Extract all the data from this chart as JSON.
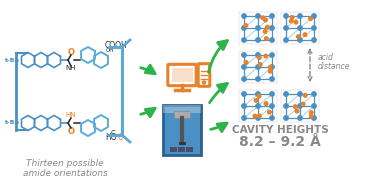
{
  "bg_color": "#ffffff",
  "title_text": "CAVITY HEIGHTS",
  "subtitle_text": "8.2 – 9.2 Å",
  "bottom_label_line1": "Thirteen possible",
  "bottom_label_line2": "amide orientations",
  "acid_label_line1": "acid",
  "acid_label_line2": "distance",
  "label_color": "#999999",
  "orange_color": "#e8812a",
  "blue_color": "#4a90c4",
  "blue_dark": "#2a6090",
  "cyan_blue": "#5aabdc",
  "green_arrow": "#2db34a",
  "black_color": "#222222",
  "gray_text": "#888888",
  "figure_width": 3.78,
  "figure_height": 1.85,
  "dpi": 100
}
